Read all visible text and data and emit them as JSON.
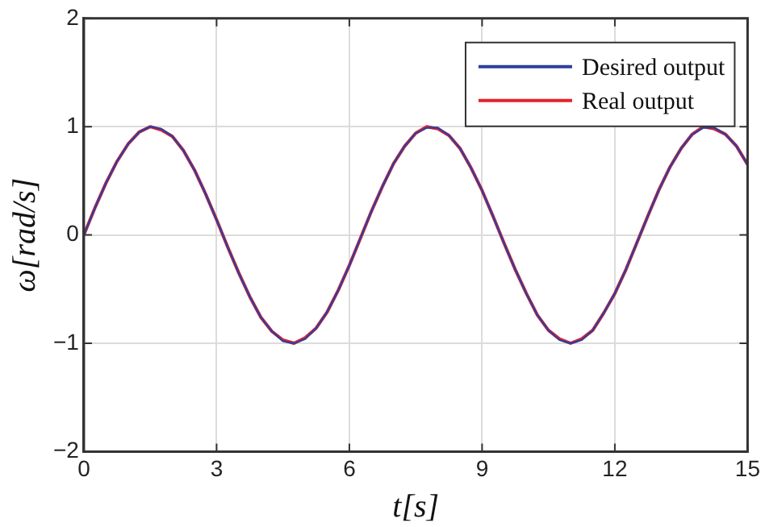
{
  "chart_data": {
    "type": "line",
    "xlabel": "t[s]",
    "ylabel": "ω[rad/s]",
    "x": [
      0,
      0.25,
      0.5,
      0.75,
      1,
      1.25,
      1.5,
      1.75,
      2,
      2.25,
      2.5,
      2.75,
      3,
      3.25,
      3.5,
      3.75,
      4,
      4.25,
      4.5,
      4.75,
      5,
      5.25,
      5.5,
      5.75,
      6,
      6.25,
      6.5,
      6.75,
      7,
      7.25,
      7.5,
      7.75,
      8,
      8.25,
      8.5,
      8.75,
      9,
      9.25,
      9.5,
      9.75,
      10,
      10.25,
      10.5,
      10.75,
      11,
      11.25,
      11.5,
      11.75,
      12,
      12.25,
      12.5,
      12.75,
      13,
      13.25,
      13.5,
      13.75,
      14,
      14.25,
      14.5,
      14.75,
      15
    ],
    "series": [
      {
        "name": "Desired output",
        "color": "#2e3f9e",
        "values": [
          0,
          0.25,
          0.48,
          0.68,
          0.84,
          0.95,
          1.0,
          0.98,
          0.91,
          0.78,
          0.6,
          0.38,
          0.14,
          -0.11,
          -0.35,
          -0.57,
          -0.76,
          -0.89,
          -0.98,
          -1.0,
          -0.96,
          -0.86,
          -0.71,
          -0.51,
          -0.28,
          -0.03,
          0.22,
          0.45,
          0.66,
          0.82,
          0.94,
          0.99,
          0.99,
          0.92,
          0.8,
          0.62,
          0.41,
          0.17,
          -0.08,
          -0.32,
          -0.54,
          -0.74,
          -0.88,
          -0.97,
          -1.0,
          -0.97,
          -0.88,
          -0.72,
          -0.54,
          -0.32,
          -0.07,
          0.18,
          0.42,
          0.63,
          0.8,
          0.93,
          0.99,
          0.99,
          0.93,
          0.82,
          0.65
        ]
      },
      {
        "name": "Real output",
        "color": "#e8202a",
        "values": [
          0,
          0.25,
          0.48,
          0.68,
          0.84,
          0.95,
          1.0,
          0.97,
          0.91,
          0.78,
          0.6,
          0.38,
          0.14,
          -0.11,
          -0.35,
          -0.57,
          -0.76,
          -0.89,
          -0.97,
          -1.0,
          -0.95,
          -0.86,
          -0.71,
          -0.51,
          -0.28,
          -0.03,
          0.22,
          0.45,
          0.66,
          0.82,
          0.94,
          1.0,
          0.98,
          0.92,
          0.8,
          0.62,
          0.41,
          0.17,
          -0.08,
          -0.32,
          -0.54,
          -0.74,
          -0.88,
          -0.96,
          -1.0,
          -0.96,
          -0.88,
          -0.72,
          -0.54,
          -0.32,
          -0.07,
          0.18,
          0.42,
          0.63,
          0.8,
          0.93,
          1.0,
          0.98,
          0.93,
          0.82,
          0.65
        ]
      }
    ],
    "xlim": [
      0,
      15
    ],
    "xticks": [
      0,
      3,
      6,
      9,
      12,
      15
    ],
    "ylim": [
      -2,
      2
    ],
    "yticks": [
      {
        "value": -2,
        "label": "−2"
      },
      {
        "value": -1,
        "label": "−1"
      },
      0,
      1,
      2
    ],
    "grid": true,
    "legend": "top right",
    "marker": "none",
    "line_style": "solid"
  }
}
